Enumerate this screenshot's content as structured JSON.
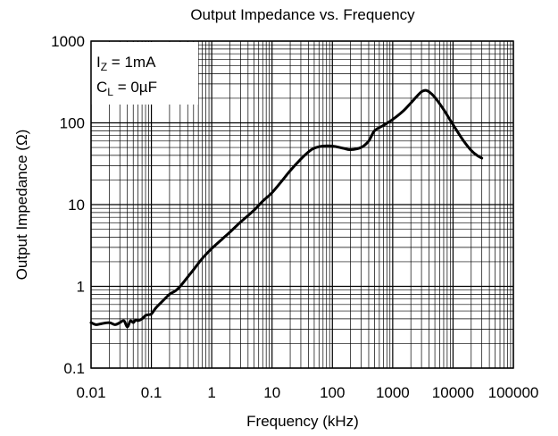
{
  "chart_data": {
    "type": "line",
    "title": "Output Impedance vs. Frequency",
    "xlabel": "Frequency (kHz)",
    "ylabel": "Output Impedance (Ω)",
    "xscale": "log",
    "yscale": "log",
    "xlim": [
      0.01,
      100000
    ],
    "ylim": [
      0.1,
      1000
    ],
    "xticks": [
      "0.01",
      "0.1",
      "1",
      "10",
      "100",
      "1000",
      "10000",
      "100000"
    ],
    "yticks": [
      "0.1",
      "1",
      "10",
      "100",
      "1000"
    ],
    "grid": true,
    "annotation": {
      "line1_main": "I",
      "line1_sub": "Z",
      "line1_rest": " = 1mA",
      "line2_main": "C",
      "line2_sub": "L",
      "line2_rest": " = 0µF"
    },
    "series": [
      {
        "x": [
          0.01,
          0.012,
          0.015,
          0.02,
          0.025,
          0.03,
          0.035,
          0.04,
          0.045,
          0.05,
          0.055,
          0.06,
          0.07,
          0.08,
          0.09,
          0.1,
          0.12,
          0.15,
          0.2,
          0.25,
          0.3,
          0.4,
          0.5,
          0.7,
          1,
          1.5,
          2,
          3,
          5,
          7,
          10,
          15,
          20,
          30,
          40,
          50,
          70,
          100,
          150,
          200,
          300,
          400,
          500,
          700,
          1000,
          1500,
          2000,
          2500,
          3000,
          3500,
          4000,
          5000,
          7000,
          10000,
          15000,
          20000,
          25000,
          30000
        ],
        "y": [
          0.36,
          0.34,
          0.35,
          0.36,
          0.34,
          0.36,
          0.38,
          0.32,
          0.38,
          0.36,
          0.39,
          0.38,
          0.4,
          0.44,
          0.45,
          0.46,
          0.55,
          0.65,
          0.8,
          0.88,
          1.0,
          1.3,
          1.6,
          2.2,
          2.9,
          3.8,
          4.6,
          6.1,
          8.5,
          11,
          14,
          20,
          26,
          36,
          44,
          49,
          52,
          52,
          49,
          47,
          50,
          60,
          80,
          93,
          110,
          140,
          175,
          210,
          240,
          250,
          240,
          205,
          145,
          95,
          60,
          46,
          40,
          37
        ]
      }
    ]
  }
}
